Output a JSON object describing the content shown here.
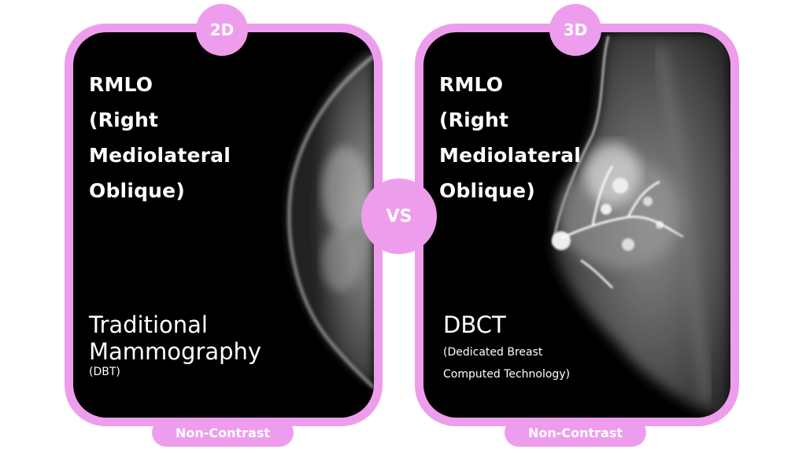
{
  "accent_color": "#ee9ded",
  "left_panel": {
    "badge": "2D",
    "view_title_lines": [
      "RMLO",
      "(Right",
      "Mediolateral",
      "Oblique)"
    ],
    "modality_lines": [
      "Traditional",
      "Mammography"
    ],
    "modality_abbrev": "(DBT)",
    "footer_pill": "Non-Contrast"
  },
  "divider": {
    "label": "VS"
  },
  "right_panel": {
    "badge": "3D",
    "view_title_lines": [
      "RMLO",
      "(Right",
      "Mediolateral",
      "Oblique)"
    ],
    "modality": "DBCT",
    "modality_description_lines": [
      "(Dedicated Breast",
      "Computed Technology)"
    ],
    "footer_pill": "Non-Contrast"
  }
}
